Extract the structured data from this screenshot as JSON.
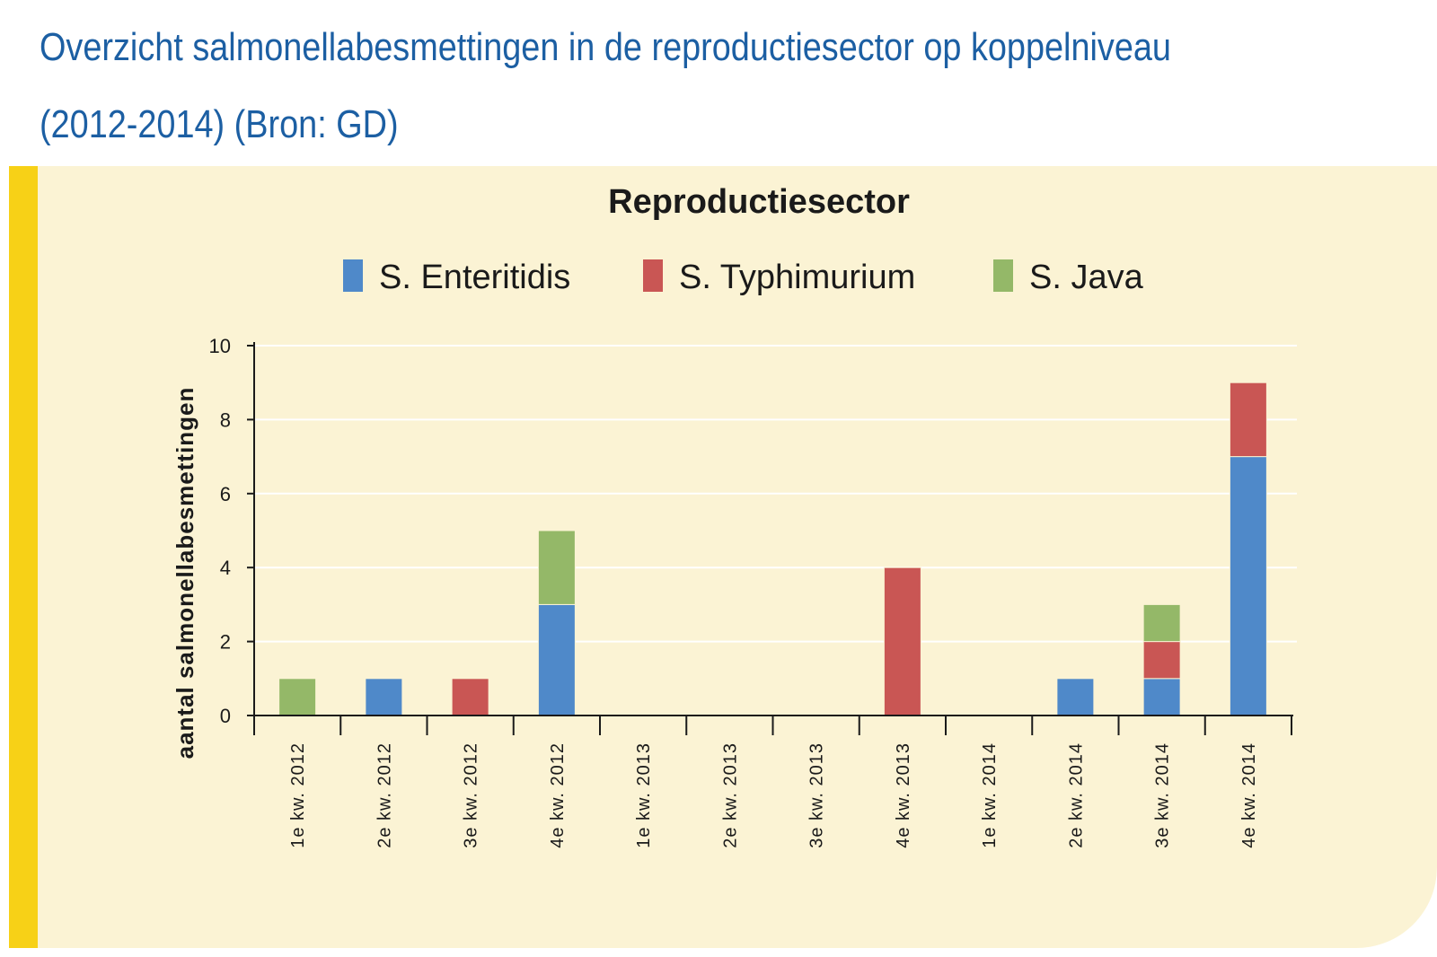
{
  "header": {
    "title_line1": "Overzicht salmonellabesmettingen in de reproductiesector op koppelniveau",
    "title_line2": "(2012-2014) (Bron: GD)"
  },
  "colors": {
    "title": "#1c5fa3",
    "panel_background": "#fbf3d4",
    "accent_bar": "#f7d117",
    "enteritidis": "#4f89c9",
    "typhimurium": "#c95654",
    "java": "#94b868"
  },
  "chart_data": {
    "type": "bar",
    "stacked": true,
    "title": "Reproductiesector",
    "ylabel": "aantal salmonellabesmettingen",
    "xlabel": "",
    "ylim": [
      0,
      10
    ],
    "yticks": [
      0,
      2,
      4,
      6,
      8,
      10
    ],
    "grid": true,
    "legend_position": "top",
    "categories": [
      "1e kw. 2012",
      "2e kw. 2012",
      "3e kw. 2012",
      "4e kw. 2012",
      "1e kw. 2013",
      "2e kw. 2013",
      "3e kw. 2013",
      "4e kw. 2013",
      "1e kw. 2014",
      "2e kw. 2014",
      "3e kw. 2014",
      "4e kw. 2014"
    ],
    "series": [
      {
        "name": "S. Enteritidis",
        "color": "#4f89c9",
        "values": [
          0,
          1,
          0,
          3,
          0,
          0,
          0,
          0,
          0,
          1,
          1,
          7
        ]
      },
      {
        "name": "S. Typhimurium",
        "color": "#c95654",
        "values": [
          0,
          0,
          1,
          0,
          0,
          0,
          0,
          4,
          0,
          0,
          1,
          2
        ]
      },
      {
        "name": "S. Java",
        "color": "#94b868",
        "values": [
          1,
          0,
          0,
          2,
          0,
          0,
          0,
          0,
          0,
          0,
          1,
          0
        ]
      }
    ]
  }
}
